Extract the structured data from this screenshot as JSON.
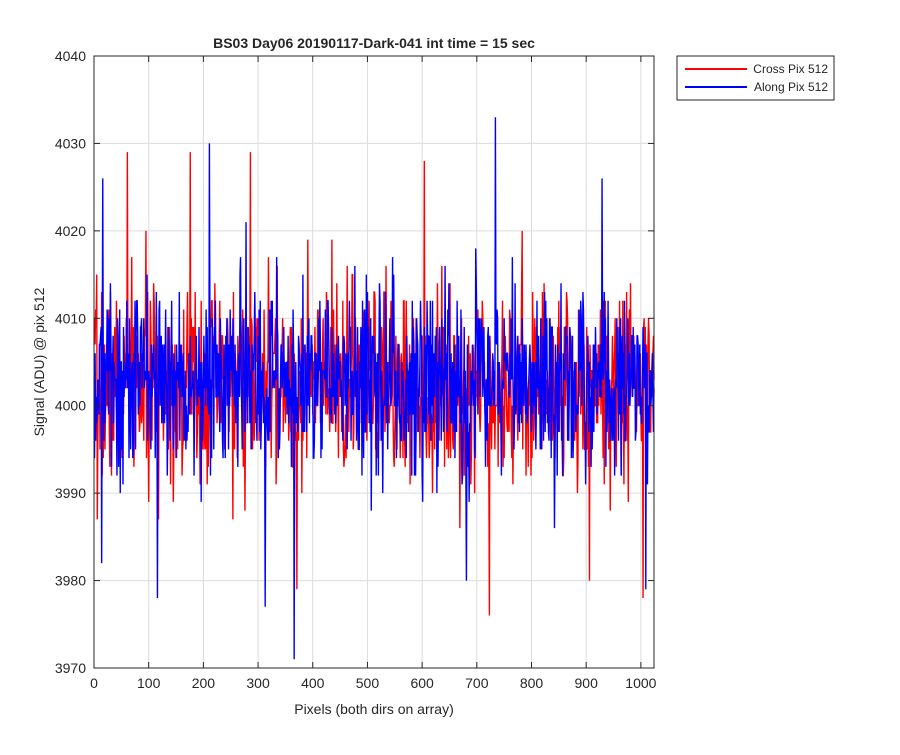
{
  "chart_data": {
    "type": "line",
    "title": "BS03 Day06 20190117-Dark-041 int time = 15 sec",
    "xlabel": "Pixels (both dirs on array)",
    "ylabel": "Signal (ADU) @ pix 512",
    "xlim": [
      0,
      1024
    ],
    "ylim": [
      3970,
      4040
    ],
    "xticks": [
      0,
      100,
      200,
      300,
      400,
      500,
      600,
      700,
      800,
      900,
      1000
    ],
    "yticks": [
      3970,
      3980,
      3990,
      4000,
      4010,
      4020,
      4030,
      4040
    ],
    "grid": true,
    "legend_position": "outside-top-right",
    "series": [
      {
        "name": "Cross Pix 512",
        "color": "#ff0000",
        "mean": 4002.5,
        "std": 5.5,
        "n_points": 1024,
        "notable_points": [
          [
            60,
            4029
          ],
          [
            175,
            4029
          ],
          [
            285,
            4029
          ],
          [
            603,
            4028
          ],
          [
            722,
            3976
          ],
          [
            905,
            3980
          ],
          [
            1003,
            3978
          ],
          [
            370,
            3979
          ],
          [
            5,
            3987
          ]
        ],
        "seed": 7
      },
      {
        "name": "Along Pix 512",
        "color": "#0000ff",
        "mean": 4003,
        "std": 5.3,
        "n_points": 1024,
        "notable_points": [
          [
            733,
            4033
          ],
          [
            210,
            4030
          ],
          [
            365,
            3971
          ],
          [
            312,
            3977
          ],
          [
            115,
            3978
          ],
          [
            680,
            3980
          ],
          [
            1008,
            3979
          ],
          [
            928,
            4026
          ],
          [
            13,
            3982
          ],
          [
            15,
            4026
          ]
        ],
        "seed": 13
      }
    ]
  }
}
